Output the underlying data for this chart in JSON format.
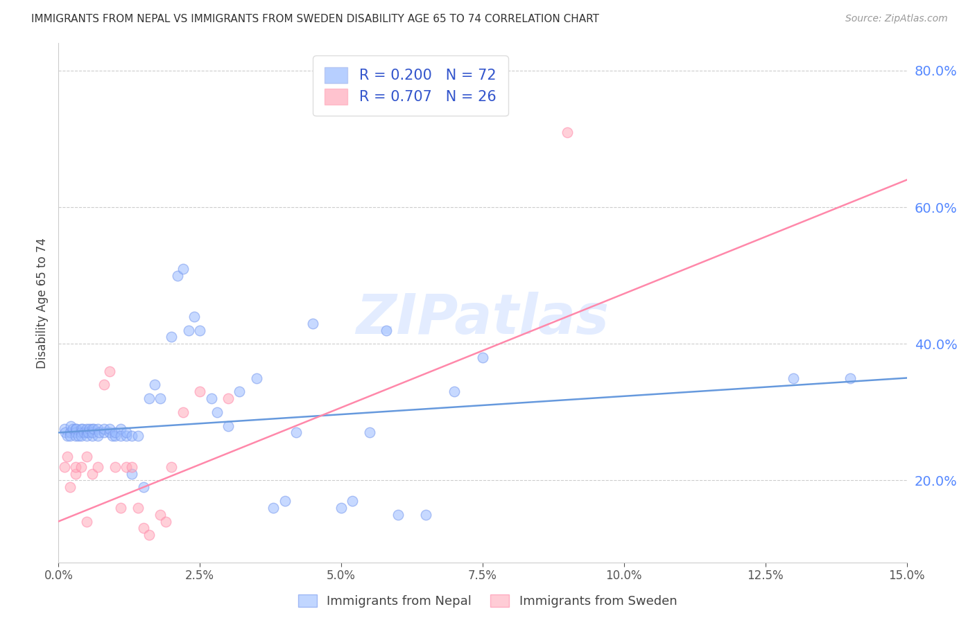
{
  "title": "IMMIGRANTS FROM NEPAL VS IMMIGRANTS FROM SWEDEN DISABILITY AGE 65 TO 74 CORRELATION CHART",
  "source": "Source: ZipAtlas.com",
  "ylabel": "Disability Age 65 to 74",
  "xlim": [
    0.0,
    0.15
  ],
  "ylim": [
    0.08,
    0.84
  ],
  "right_yticks": [
    0.2,
    0.4,
    0.6,
    0.8
  ],
  "xticks": [
    0.0,
    0.025,
    0.05,
    0.075,
    0.1,
    0.125,
    0.15
  ],
  "nepal_R": 0.2,
  "nepal_N": 72,
  "sweden_R": 0.707,
  "sweden_N": 26,
  "nepal_color": "#99BBFF",
  "sweden_color": "#FFAABB",
  "nepal_edge_color": "#7799EE",
  "sweden_edge_color": "#FF88AA",
  "nepal_line_color": "#6699DD",
  "sweden_line_color": "#FF88AA",
  "legend_text_color": "#3355CC",
  "watermark_color": "#CCDEFF",
  "nepal_x": [
    0.001,
    0.0012,
    0.0015,
    0.002,
    0.002,
    0.0022,
    0.0025,
    0.003,
    0.003,
    0.003,
    0.0032,
    0.0035,
    0.004,
    0.004,
    0.004,
    0.0042,
    0.0045,
    0.005,
    0.005,
    0.005,
    0.0052,
    0.0055,
    0.006,
    0.006,
    0.006,
    0.0062,
    0.007,
    0.007,
    0.0072,
    0.008,
    0.008,
    0.009,
    0.009,
    0.0095,
    0.01,
    0.01,
    0.011,
    0.011,
    0.012,
    0.012,
    0.013,
    0.013,
    0.014,
    0.015,
    0.016,
    0.017,
    0.018,
    0.02,
    0.021,
    0.022,
    0.023,
    0.024,
    0.025,
    0.027,
    0.028,
    0.03,
    0.032,
    0.035,
    0.038,
    0.04,
    0.042,
    0.045,
    0.05,
    0.052,
    0.055,
    0.058,
    0.06,
    0.065,
    0.07,
    0.075,
    0.13,
    0.14
  ],
  "nepal_y": [
    0.275,
    0.27,
    0.265,
    0.27,
    0.265,
    0.28,
    0.275,
    0.275,
    0.27,
    0.265,
    0.275,
    0.265,
    0.275,
    0.27,
    0.265,
    0.275,
    0.27,
    0.27,
    0.275,
    0.265,
    0.27,
    0.275,
    0.275,
    0.265,
    0.27,
    0.275,
    0.275,
    0.265,
    0.27,
    0.27,
    0.275,
    0.27,
    0.275,
    0.265,
    0.265,
    0.27,
    0.275,
    0.265,
    0.265,
    0.27,
    0.265,
    0.21,
    0.265,
    0.19,
    0.32,
    0.34,
    0.32,
    0.41,
    0.5,
    0.51,
    0.42,
    0.44,
    0.42,
    0.32,
    0.3,
    0.28,
    0.33,
    0.35,
    0.16,
    0.17,
    0.27,
    0.43,
    0.16,
    0.17,
    0.27,
    0.42,
    0.15,
    0.15,
    0.33,
    0.38,
    0.35,
    0.35
  ],
  "sweden_x": [
    0.001,
    0.0015,
    0.002,
    0.003,
    0.003,
    0.004,
    0.005,
    0.005,
    0.006,
    0.007,
    0.008,
    0.009,
    0.01,
    0.011,
    0.012,
    0.013,
    0.014,
    0.015,
    0.016,
    0.018,
    0.019,
    0.02,
    0.022,
    0.025,
    0.03,
    0.09
  ],
  "sweden_y": [
    0.22,
    0.235,
    0.19,
    0.21,
    0.22,
    0.22,
    0.235,
    0.14,
    0.21,
    0.22,
    0.34,
    0.36,
    0.22,
    0.16,
    0.22,
    0.22,
    0.16,
    0.13,
    0.12,
    0.15,
    0.14,
    0.22,
    0.3,
    0.33,
    0.32,
    0.71
  ],
  "nepal_trend": [
    0.0,
    0.15,
    0.27,
    0.35
  ],
  "sweden_trend": [
    0.0,
    0.15,
    0.14,
    0.64
  ]
}
